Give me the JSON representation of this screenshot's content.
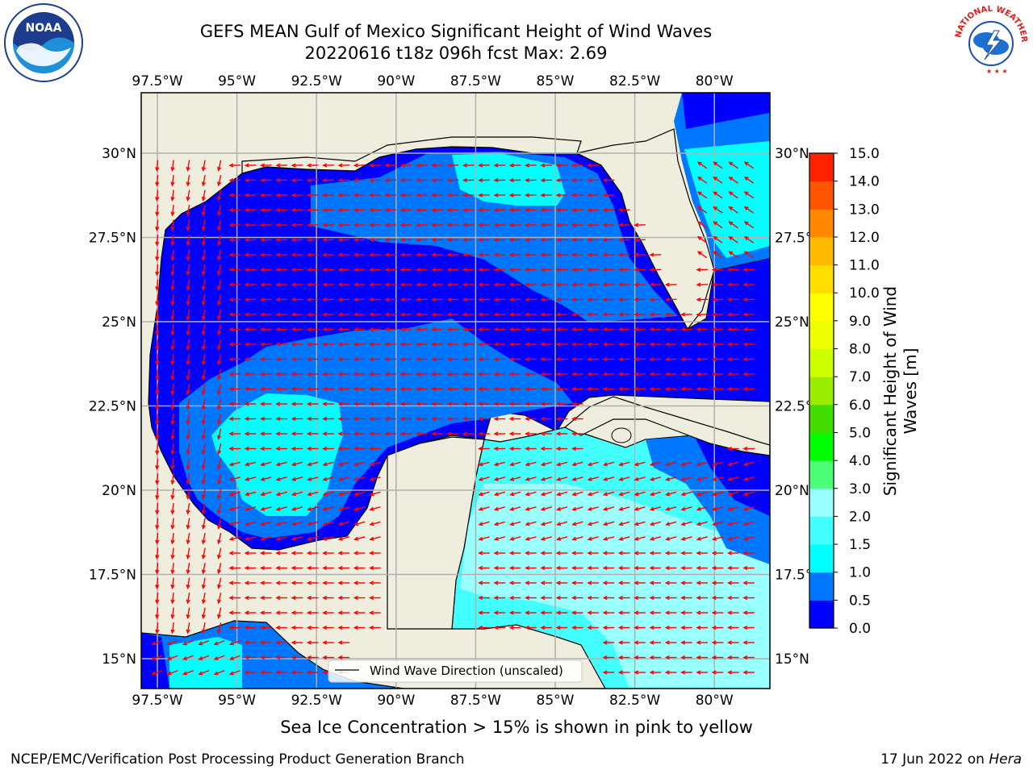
{
  "title_line1": "GEFS MEAN Gulf of Mexico Significant Height of Wind Waves",
  "title_line2": "20220616 t18z 096h fcst   Max: 2.69",
  "logos": {
    "left_text": "NOAA",
    "left_ring_text": "NATIONAL OCEANIC AND ATMOSPHERIC ADMINISTRATION · U.S. DEPARTMENT OF COMMERCE",
    "right_ring_text": "NATIONAL WEATHER SERVICE"
  },
  "map": {
    "lon_ticks": [
      "97.5°W",
      "95°W",
      "92.5°W",
      "90°W",
      "87.5°W",
      "85°W",
      "82.5°W",
      "80°W"
    ],
    "lat_ticks": [
      "30°N",
      "27.5°N",
      "25°N",
      "22.5°N",
      "20°N",
      "17.5°N",
      "15°N"
    ],
    "legend_label": "Wind Wave Direction (unscaled)",
    "colors": {
      "land": "#efedde",
      "coast": "#000000",
      "grid": "#b0b0b0",
      "arrow": "#ff0000"
    }
  },
  "colorbar": {
    "label": "Significant Height of Wind Waves [m]",
    "ticks": [
      "0.0",
      "0.5",
      "1.0",
      "1.5",
      "2.0",
      "3.0",
      "4.0",
      "5.0",
      "6.0",
      "7.0",
      "8.0",
      "9.0",
      "10.0",
      "11.0",
      "12.0",
      "13.0",
      "14.0",
      "15.0"
    ],
    "colors": [
      "#0000ff",
      "#0077ff",
      "#00ffff",
      "#44ffff",
      "#99ffff",
      "#4dff77",
      "#00ff00",
      "#44dd00",
      "#99ee00",
      "#ccff00",
      "#eeff00",
      "#ffff00",
      "#ffdd00",
      "#ffbb00",
      "#ff8800",
      "#ff5500",
      "#ff2200"
    ]
  },
  "note": "Sea Ice Concentration > 15% is shown in pink to yellow",
  "footer_left": "NCEP/EMC/Verification Post Processing Product Generation Branch",
  "footer_right_date": "17 Jun 2022 on ",
  "footer_right_host": "Hera"
}
